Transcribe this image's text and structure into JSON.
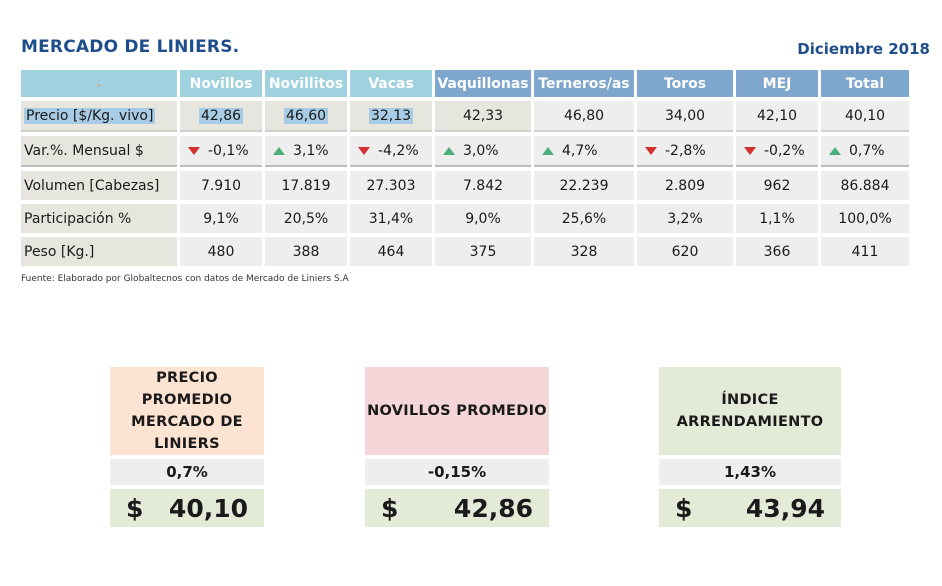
{
  "title": "MERCADO DE LINIERS.",
  "date": "Diciembre 2018",
  "table": {
    "corner": "-",
    "columns": [
      "Novillos",
      "Novillitos",
      "Vacas",
      "Vaquillonas",
      "Terneros/as",
      "Toros",
      "MEJ",
      "Total"
    ],
    "rows": [
      {
        "label": "Precio [$/Kg. vivo]",
        "values": [
          "42,86",
          "46,60",
          "32,13",
          "42,33",
          "46,80",
          "34,00",
          "42,10",
          "40,10"
        ]
      },
      {
        "label": "Var.%. Mensual $",
        "values": [
          "-0,1%",
          "3,1%",
          "-4,2%",
          "3,0%",
          "4,7%",
          "-2,8%",
          "-0,2%",
          "0,7%"
        ],
        "trend": [
          "down",
          "up",
          "down",
          "up",
          "up",
          "down",
          "down",
          "up"
        ]
      },
      {
        "label": "Volumen [Cabezas]",
        "values": [
          "7.910",
          "17.819",
          "27.303",
          "7.842",
          "22.239",
          "2.809",
          "962",
          "86.884"
        ]
      },
      {
        "label": "Participación %",
        "values": [
          "9,1%",
          "20,5%",
          "31,4%",
          "9,0%",
          "25,6%",
          "3,2%",
          "1,1%",
          "100,0%"
        ]
      },
      {
        "label": "Peso  [Kg.]",
        "values": [
          "480",
          "388",
          "464",
          "375",
          "328",
          "620",
          "366",
          "411"
        ]
      }
    ]
  },
  "source": "Fuente: Elaborado por Globaltecnos con datos de Mercado de Liniers S.A",
  "cards": [
    {
      "title": "PRECIO PROMEDIO MERCADO DE LINIERS",
      "pct": "0,7%",
      "currency": "$",
      "value": "40,10",
      "head_color": "#fde3d2"
    },
    {
      "title": "NOVILLOS PROMEDIO",
      "pct": "-0,15%",
      "currency": "$",
      "value": "42,86",
      "head_color": "#f4d5d8"
    },
    {
      "title": "ÍNDICE ARRENDAMIENTO",
      "pct": "1,43%",
      "currency": "$",
      "value": "43,94",
      "head_color": "#e3ebd8"
    }
  ],
  "colors": {
    "title": "#1f4e8c",
    "header_bg": "#9fd1df",
    "header_selected_bg": "#7fa6cc",
    "cell_bg": "#eeeeee",
    "highlight": "#a8cbe6",
    "down": "#d32f2f",
    "up": "#4caf7a"
  }
}
